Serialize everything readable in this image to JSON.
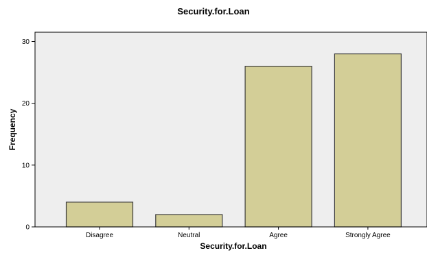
{
  "chart_data": {
    "type": "bar",
    "title": "Security.for.Loan",
    "xlabel": "Security.for.Loan",
    "ylabel": "Frequency",
    "categories": [
      "Disagree",
      "Neutral",
      "Agree",
      "Strongly Agree"
    ],
    "values": [
      4,
      2,
      26,
      28
    ],
    "ylim": [
      0,
      31.5
    ],
    "yticks": [
      "0",
      "10",
      "20",
      "30"
    ],
    "grid": false,
    "legend": "none",
    "colors": {
      "bar_fill": "#d3ce97",
      "bar_stroke": "#3c3c3c",
      "plot_background": "#eeeeee",
      "axis": "#000000"
    }
  }
}
